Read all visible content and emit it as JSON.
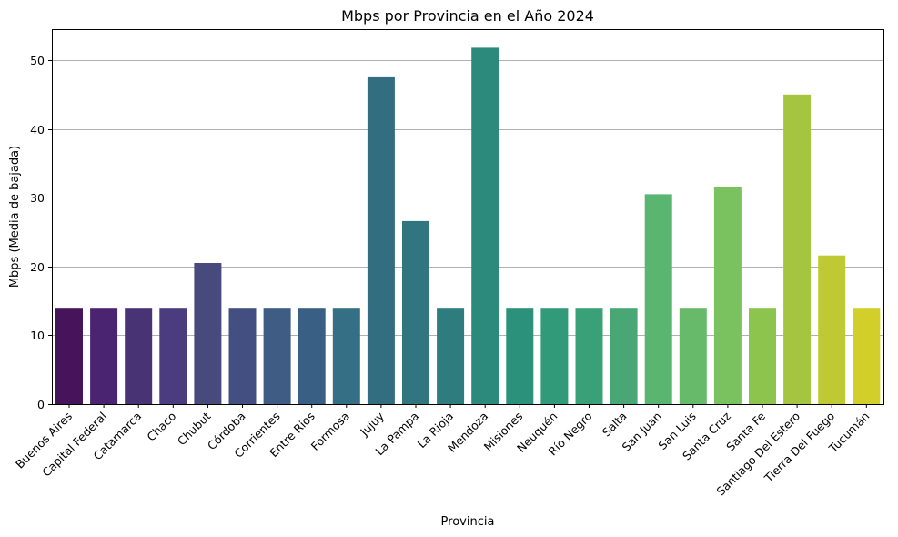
{
  "chart_data": {
    "type": "bar",
    "title": "Mbps por Provincia en el Año 2024",
    "xlabel": "Provincia",
    "ylabel": "Mbps (Media de bajada)",
    "ylim": [
      0,
      54.5
    ],
    "yticks": [
      0,
      10,
      20,
      30,
      40,
      50
    ],
    "grid": "y",
    "categories": [
      "Buenos Aires",
      "Capital Federal",
      "Catamarca",
      "Chaco",
      "Chubut",
      "Córdoba",
      "Corrientes",
      "Entre Rios",
      "Formosa",
      "Jujuy",
      "La Pampa",
      "La Rioja",
      "Mendoza",
      "Misiones",
      "Neuquén",
      "Río Negro",
      "Salta",
      "San Juan",
      "San Luis",
      "Santa Cruz",
      "Santa Fe",
      "Santiago Del Estero",
      "Tierra Del Fuego",
      "Tucumán"
    ],
    "values": [
      14.0,
      14.0,
      14.0,
      14.0,
      20.5,
      14.0,
      14.0,
      14.0,
      14.0,
      47.5,
      26.6,
      14.0,
      51.8,
      14.0,
      14.0,
      14.0,
      14.0,
      30.5,
      14.0,
      31.6,
      14.0,
      45.0,
      21.6,
      14.0
    ],
    "colors": [
      "#45145b",
      "#4a2470",
      "#483374",
      "#4a3c7f",
      "#484a7e",
      "#424f80",
      "#3e5c84",
      "#3a5f84",
      "#356f86",
      "#336e80",
      "#31757e",
      "#2e7c7e",
      "#2c8a7c",
      "#2b917a",
      "#319a78",
      "#3aa077",
      "#48a775",
      "#59b56f",
      "#68ba6b",
      "#7ac260",
      "#8cc44d",
      "#a5c540",
      "#bfc934",
      "#d3cf2a"
    ]
  }
}
